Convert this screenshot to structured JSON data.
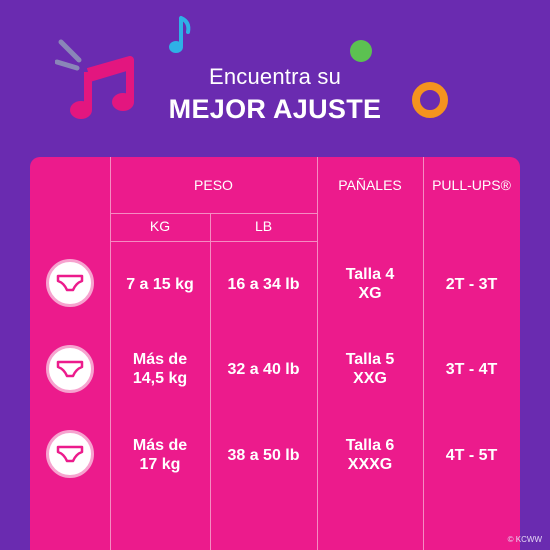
{
  "heading": {
    "line1": "Encuentra su",
    "line2": "MEJOR AJUSTE"
  },
  "table": {
    "headers": {
      "peso": "PESO",
      "panales": "PAÑALES",
      "pullups": "PULL-UPS®",
      "kg": "KG",
      "lb": "LB"
    },
    "rows": [
      {
        "icon": "diaper-icon",
        "kg": "7 a 15 kg",
        "lb": "16 a 34 lb",
        "panales": "Talla 4\nXG",
        "pullups": "2T - 3T"
      },
      {
        "icon": "diaper-icon",
        "kg": "Más de\n14,5 kg",
        "lb": "32 a 40 lb",
        "panales": "Talla 5\nXXG",
        "pullups": "3T - 4T"
      },
      {
        "icon": "diaper-icon",
        "kg": "Más de\n17 kg",
        "lb": "38 a 50 lb",
        "panales": "Talla 6\nXXXG",
        "pullups": "4T - 5T"
      }
    ]
  },
  "copyright": "© KCWW",
  "colors": {
    "background": "#6a2bb0",
    "card": "#ec1b8c",
    "divider": "#f58cc2",
    "note_pink": "#e3167f",
    "note_blue": "#2fb0e6",
    "dot_green": "#5cc151",
    "ring_orange": "#f5931e"
  }
}
